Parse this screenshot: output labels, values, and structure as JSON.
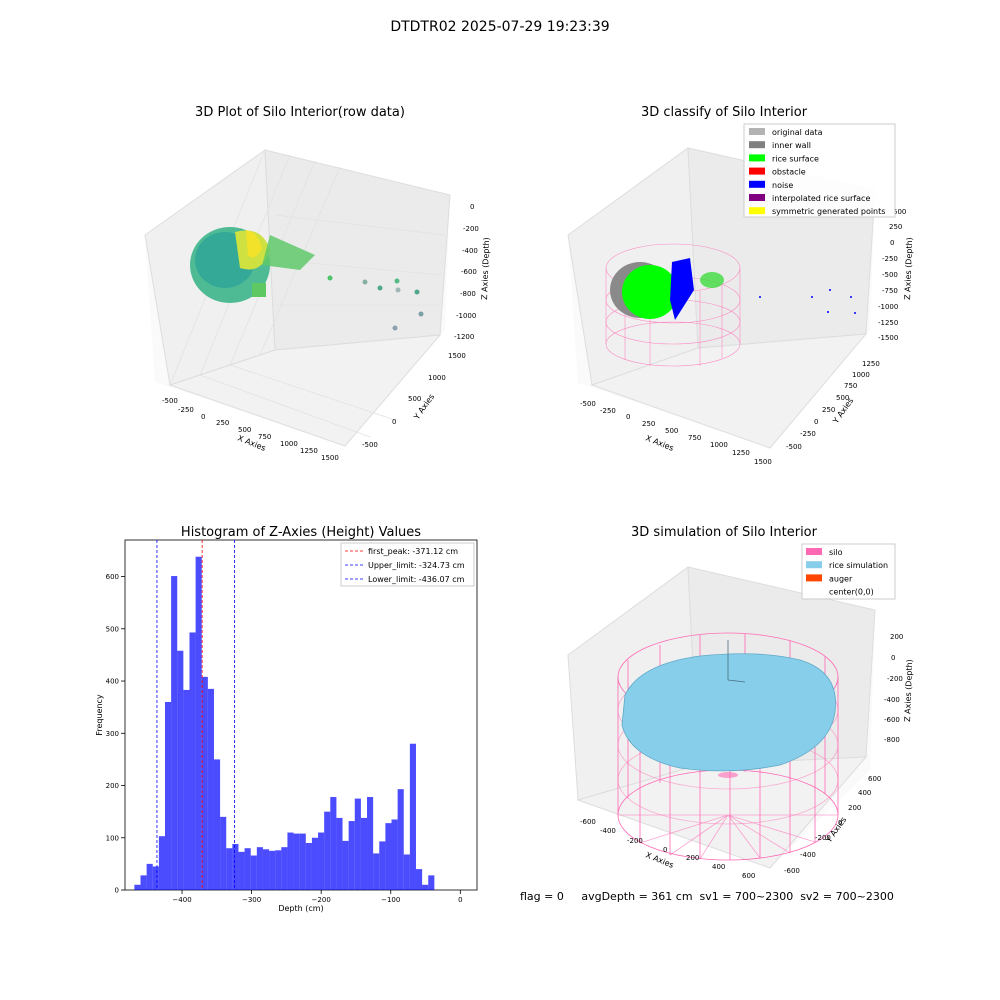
{
  "suptitle": "DTDTR02 2025-07-29 19:23:39",
  "panel_raw": {
    "title": "3D Plot of Silo Interior(row data)",
    "xlabel": "X Axies",
    "ylabel": "Y Axies",
    "zlabel": "Z Axies (Depth)",
    "xticks": [
      "-500",
      "-250",
      "0",
      "250",
      "500",
      "750",
      "1000",
      "1250",
      "1500"
    ],
    "yticks": [
      "-500",
      "0",
      "500",
      "1000",
      "1500"
    ],
    "zticks": [
      "0",
      "-200",
      "-400",
      "-600",
      "-800",
      "-1000",
      "-1200"
    ]
  },
  "panel_classify": {
    "title": "3D classify of Silo Interior",
    "xlabel": "X Axies",
    "ylabel": "Y Axies",
    "zlabel": "Z Axies (Depth)",
    "xticks": [
      "-500",
      "-250",
      "0",
      "250",
      "500",
      "750",
      "1000",
      "1250",
      "1500"
    ],
    "yticks": [
      "-500",
      "-250",
      "0",
      "250",
      "500",
      "750",
      "1000",
      "1250"
    ],
    "zticks": [
      "500",
      "250",
      "0",
      "-250",
      "-500",
      "-750",
      "-1000",
      "-1250",
      "-1500"
    ],
    "legend": [
      {
        "label": "original data",
        "color": "#b3b3b3"
      },
      {
        "label": "inner wall",
        "color": "#808080"
      },
      {
        "label": "rice surface",
        "color": "#00ff00"
      },
      {
        "label": "obstacle",
        "color": "#ff0000"
      },
      {
        "label": "noise",
        "color": "#0000ff"
      },
      {
        "label": "interpolated rice surface",
        "color": "#800080"
      },
      {
        "label": "symmetric generated points",
        "color": "#ffff00"
      }
    ]
  },
  "panel_sim": {
    "title": "3D simulation of Silo Interior",
    "xlabel": "X Axies",
    "ylabel": "Y Axies",
    "zlabel": "Z Axies (Depth)",
    "xticks": [
      "-600",
      "-400",
      "-200",
      "0",
      "200",
      "400",
      "600"
    ],
    "yticks": [
      "-600",
      "-400",
      "-200",
      "0",
      "200",
      "400",
      "600"
    ],
    "zticks": [
      "200",
      "0",
      "-200",
      "-400",
      "-600",
      "-800"
    ],
    "legend": [
      {
        "label": "silo",
        "color": "#ff69b4"
      },
      {
        "label": "rice simulation",
        "color": "#87ceeb"
      },
      {
        "label": "auger",
        "color": "#ff4500"
      },
      {
        "label": "center(0,0)",
        "color": ""
      }
    ],
    "status": "flag = 0     avgDepth = 361 cm  sv1 = 700~2300  sv2 = 700~2300"
  },
  "chart_data": {
    "type": "bar",
    "title": "Histogram of Z-Axies (Height) Values",
    "xlabel": "Depth (cm)",
    "ylabel": "Frequency",
    "xlim": [
      -482,
      24
    ],
    "ylim": [
      0,
      670
    ],
    "xticks": [
      -400,
      -300,
      -200,
      -100,
      0
    ],
    "yticks": [
      0,
      100,
      200,
      300,
      400,
      500,
      600
    ],
    "bin_start": -468.5,
    "bin_width": 8.8,
    "values": [
      10,
      28,
      50,
      45,
      103,
      360,
      601,
      458,
      383,
      493,
      638,
      408,
      385,
      250,
      140,
      80,
      88,
      73,
      80,
      66,
      82,
      78,
      75,
      76,
      82,
      110,
      108,
      108,
      90,
      100,
      110,
      150,
      178,
      138,
      94,
      132,
      175,
      138,
      178,
      70,
      93,
      128,
      135,
      193,
      68,
      280,
      40,
      10,
      28
    ],
    "color": "#0000ff",
    "lines": [
      {
        "label": "first_peak: -371.12 cm",
        "x": -371.12,
        "color": "#ff0000"
      },
      {
        "label": "Upper_limit: -324.73 cm",
        "x": -324.73,
        "color": "#0000ff"
      },
      {
        "label": "Lower_limit: -436.07 cm",
        "x": -436.07,
        "color": "#0000ff"
      }
    ]
  }
}
